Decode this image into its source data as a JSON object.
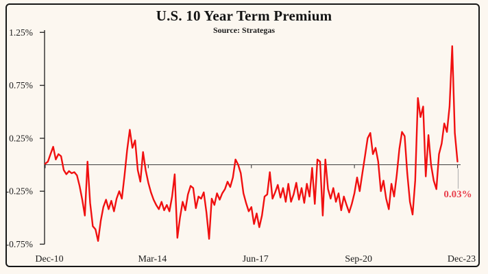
{
  "chart_data": {
    "type": "line",
    "title": "U.S. 10 Year Term Premium",
    "subtitle": "Source: Strategas",
    "unit": "%",
    "frequency": "monthly",
    "x_range": [
      "Dec-10",
      "Dec-23"
    ],
    "x_tick_labels": [
      "Dec-10",
      "Mar-14",
      "Jun-17",
      "Sep-20",
      "Dec-23"
    ],
    "y_tick_labels": [
      "1.25%",
      "0.75%",
      "0.25%",
      "-0.25%",
      "-0.75%"
    ],
    "y_tick_values": [
      1.25,
      0.75,
      0.25,
      -0.25,
      -0.75
    ],
    "ylim": [
      -0.75,
      1.25
    ],
    "grid": "none",
    "legend": "none",
    "zero_baseline": true,
    "last_value_label": "0.03%",
    "last_value": 0.03,
    "series": [
      {
        "name": "U.S. 10 Year Term Premium",
        "values": [
          0.01,
          0.03,
          0.1,
          0.17,
          0.05,
          0.1,
          0.08,
          -0.05,
          -0.09,
          -0.06,
          -0.08,
          -0.07,
          -0.1,
          -0.2,
          -0.33,
          -0.48,
          0.03,
          -0.36,
          -0.58,
          -0.61,
          -0.72,
          -0.53,
          -0.4,
          -0.33,
          -0.42,
          -0.34,
          -0.44,
          -0.32,
          -0.25,
          -0.32,
          -0.1,
          0.14,
          0.33,
          0.16,
          0.23,
          -0.05,
          -0.16,
          0.12,
          -0.05,
          -0.17,
          -0.26,
          -0.33,
          -0.38,
          -0.42,
          -0.35,
          -0.43,
          -0.38,
          -0.44,
          -0.3,
          -0.09,
          -0.69,
          -0.5,
          -0.35,
          -0.43,
          -0.28,
          -0.2,
          -0.22,
          -0.41,
          -0.3,
          -0.32,
          -0.26,
          -0.45,
          -0.7,
          -0.32,
          -0.38,
          -0.27,
          -0.33,
          -0.27,
          -0.23,
          -0.16,
          -0.21,
          -0.12,
          0.05,
          0.0,
          -0.08,
          -0.27,
          -0.36,
          -0.44,
          -0.4,
          -0.56,
          -0.46,
          -0.59,
          -0.48,
          -0.3,
          -0.28,
          -0.07,
          -0.32,
          -0.26,
          -0.19,
          -0.31,
          -0.22,
          -0.35,
          -0.18,
          -0.35,
          -0.28,
          -0.17,
          -0.33,
          -0.22,
          -0.36,
          -0.18,
          -0.3,
          -0.03,
          -0.37,
          0.05,
          0.03,
          -0.48,
          0.05,
          -0.23,
          -0.32,
          -0.22,
          -0.35,
          -0.27,
          -0.43,
          -0.3,
          -0.38,
          -0.45,
          -0.37,
          -0.27,
          -0.12,
          -0.25,
          -0.08,
          0.08,
          0.25,
          0.3,
          0.1,
          0.16,
          0.03,
          -0.25,
          -0.15,
          -0.32,
          -0.42,
          -0.18,
          -0.3,
          -0.1,
          0.15,
          0.31,
          0.27,
          -0.08,
          -0.35,
          -0.47,
          -0.15,
          0.63,
          0.45,
          0.55,
          -0.11,
          0.28,
          0.0,
          -0.15,
          -0.23,
          0.1,
          0.2,
          0.39,
          0.31,
          0.55,
          1.12,
          0.3,
          0.03
        ]
      }
    ],
    "colors": {
      "background": "#fcf7f0",
      "frame_border": "#161616",
      "line": "#f01010",
      "axis": "#1c1c1c",
      "zero_line": "#3d3d3d",
      "tick_text": "#1b1b1b",
      "annotation_text": "#e9404d",
      "callout_line": "#b5b5b5"
    }
  }
}
